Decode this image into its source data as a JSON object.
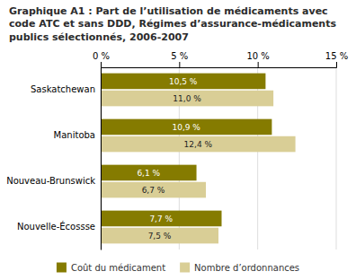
{
  "chart_data": {
    "type": "bar",
    "orientation": "horizontal",
    "title": "Graphique A1 : Part de l’utilisation de médicaments avec code ATC et sans DDD, Régimes d’assurance-médicaments publics sélectionnés, 2006-2007",
    "categories": [
      "Saskatchewan",
      "Manitoba",
      "Nouveau-Brunswick",
      "Nouvelle-Écossse"
    ],
    "series": [
      {
        "name": "Coût du médicament",
        "color": "#857B00",
        "values": [
          10.5,
          10.9,
          6.1,
          7.7
        ],
        "value_labels": [
          "10,5 %",
          "10,9 %",
          "6,1 %",
          "7,7 %"
        ]
      },
      {
        "name": "Nombre d’ordonnances",
        "color": "#D9CE96",
        "values": [
          11.0,
          12.4,
          6.7,
          7.5
        ],
        "value_labels": [
          "11,0 %",
          "12,4 %",
          "6,7 %",
          "7,5 %"
        ]
      }
    ],
    "xlim": [
      0,
      15
    ],
    "xticks": [
      {
        "value": 0,
        "label": "0 %"
      },
      {
        "value": 5,
        "label": "5 %"
      },
      {
        "value": 10,
        "label": "10 %"
      },
      {
        "value": 15,
        "label": "15 %"
      }
    ],
    "grid": true,
    "data_labels": true,
    "legend": "bottom"
  }
}
